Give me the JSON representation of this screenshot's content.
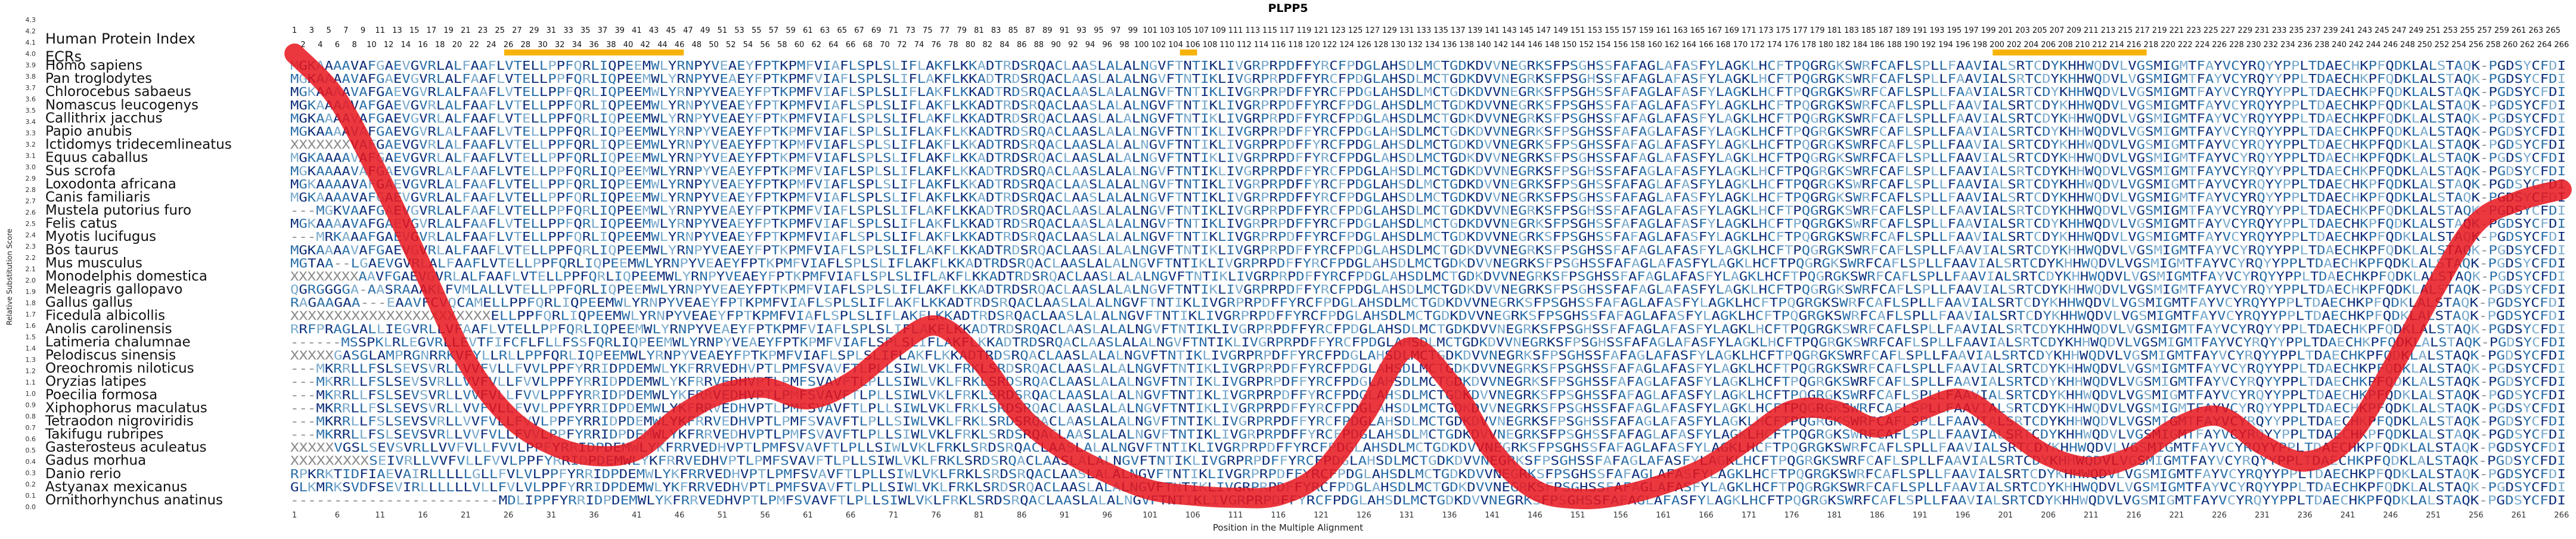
{
  "chart_data": {
    "type": "line",
    "title": "PLPP5",
    "xlabel": "Position in the Multiple Alignment",
    "ylabel": "Relative Substitution Score",
    "ylim": [
      0,
      4.3
    ],
    "xlim": [
      1,
      266
    ],
    "y_ticks": [
      0,
      0.1,
      0.2,
      0.3,
      0.4,
      0.5,
      0.6,
      0.7,
      0.8,
      0.9,
      1.0,
      1.1,
      1.2,
      1.3,
      1.4,
      1.5,
      1.6,
      1.7,
      1.8,
      1.9,
      2.0,
      2.1,
      2.2,
      2.3,
      2.4,
      2.5,
      2.6,
      2.7,
      2.8,
      2.9,
      3.0,
      3.1,
      3.2,
      3.3,
      3.4,
      3.5,
      3.6,
      3.7,
      3.8,
      3.9,
      4.0,
      4.1,
      4.2,
      4.3
    ],
    "x_tick_start": 1,
    "x_tick_step": 5,
    "header_label": "Human Protein Index",
    "ecr_label": "ECRs",
    "ecr_regions": [
      [
        26,
        46
      ],
      [
        105,
        106
      ],
      [
        200,
        217
      ]
    ],
    "top_index_row1_step": 2,
    "top_index_row1_start": 1,
    "top_index_row2_start": 2,
    "grid": false,
    "legend": "none",
    "series": [
      {
        "color": "#e8141c",
        "x": [
          1,
          6,
          11,
          16,
          21,
          26,
          31,
          36,
          41,
          46,
          51,
          56,
          61,
          66,
          71,
          76,
          81,
          86,
          91,
          96,
          101,
          106,
          111,
          116,
          121,
          126,
          131,
          136,
          141,
          146,
          151,
          156,
          161,
          166,
          171,
          176,
          181,
          186,
          191,
          196,
          201,
          206,
          211,
          216,
          221,
          226,
          231,
          236,
          241,
          246,
          251,
          256,
          261,
          266
        ],
        "values": [
          4.0,
          3.6,
          2.9,
          2.1,
          1.3,
          0.8,
          0.55,
          0.45,
          0.5,
          0.8,
          1.0,
          1.05,
          0.95,
          1.1,
          1.4,
          1.6,
          1.3,
          0.8,
          0.5,
          0.3,
          0.15,
          0.1,
          0.08,
          0.1,
          0.3,
          0.8,
          1.4,
          1.1,
          0.5,
          0.15,
          0.07,
          0.1,
          0.2,
          0.35,
          0.6,
          0.85,
          0.85,
          0.7,
          0.85,
          0.95,
          0.7,
          0.45,
          0.35,
          0.45,
          0.7,
          0.8,
          0.55,
          0.4,
          0.6,
          1.2,
          1.9,
          2.5,
          2.7,
          2.8
        ]
      }
    ],
    "alignment_palette": [
      "#888888",
      "#7aaacc",
      "#2a6fa8",
      "#0d2e7a"
    ],
    "species": [
      "Homo sapiens",
      "Pan troglodytes",
      "Chlorocebus sabaeus",
      "Nomascus leucogenys",
      "Callithrix jacchus",
      "Papio anubis",
      "Ictidomys tridecemlineatus",
      "Equus caballus",
      "Sus scrofa",
      "Loxodonta africana",
      "Canis familiaris",
      "Mustela putorius furo",
      "Felis catus",
      "Myotis lucifugus",
      "Bos taurus",
      "Mus musculus",
      "Monodelphis domestica",
      "Meleagris gallopavo",
      "Gallus gallus",
      "Ficedula albicollis",
      "Anolis carolinensis",
      "Latimeria chalumnae",
      "Pelodiscus sinensis",
      "Oreochromis niloticus",
      "Oryzias latipes",
      "Poecilia formosa",
      "Xiphophorus maculatus",
      "Tetraodon nigroviridis",
      "Takifugu rubripes",
      "Gasterosteus aculeatus",
      "Gadus morhua",
      "Danio rerio",
      "Astyanax mexicanus",
      "Ornithorhynchus anatinus"
    ],
    "sequences": [
      "MGKAAAAVAFGAEVGVRLALFAAFLVTELLPPFQRLIQPEEMWLYRNPYVEAEYFPTKPMFVIAFLSPLSLIFLAKFLKKADTRDSRQACLAASLALALNGVFTNTIKLIVGRPRPDFFYRCFPDGLAHSDLMCTGDKDVVNEGRKSFPSGHSSFAFAGLAFASFYLAGKLHCFTPQGRGKSWRFCAFLSPLLFAAVIALSRTCDYKHHWQDVLVGSMIGMTFAYVCYRQYYPPLTDAECHKPFQDKLALSTAQK-PGDSYCFDI",
      "MGKAAAAVAFGAEVGVRLALFAAFLVTELLPPFQRLIQPEEMWLYRNPYVEAEYFPTKPMFVIAFLSPLSLIFLAKFLKKADTRDSRQACLAASLALALNGVFTNTIKLIVGRPRPDFFYRCFPDGLAHSDLMCTGDKDVVNEGRKSFPSGHSSFAFAGLAFASFYLAGKLHCFTPQGRGKSWRFCAFLSPLLFAAVIALSRTCDYKHHWQDVLVGSMIGMTFAYVCYRQYYPPLTDAECHKPFQDKLALSTAQK-PGDSYCFDI",
      "MGKAAAAVAFGAEVGVRLALFAAFLVTELLPPFQRLIQPEEMWLYRNPYVEAEYFPTKPMFVIAFLSPLSLIFLAKFLKKADTRDSRQACLAASLALALNGVFTNTIKLIVGRPRPDFFYRCFPDGLAHSDLMCTGDKDVVNEGRKSFPSGHSSFAFAGLAFASFYLAGKLHCFTPQGRGKSWRFCAFLSPLLFAAVIALSRTCDYKHHWQDVLVGSMIGMTFAYVCYRQYYPPLTDAECHKPFQDKLALSTAQK-PGDSYCFDI",
      "MGKAAAAVAFGAEVGVRLALFAAFLVTELLPPFQRLIQPEEMWLYRNPYVEAEYFPTKPMFVIAFLSPLSLIFLAKFLKKADTRDSRQACLAASLALALNGVFTNTIKLIVGRPRPDFFYRCFPDGLAHSDLMCTGDKDVVNEGRKSFPSGHSSFAFAGLAFASFYLAGKLHCFTPQGRGKSWRFCAFLSPLLFAAVIALSRTCDYKHHWQDVLVGSMIGMTFAYVCYRQYYPPLTDAECHKPFQDKLALSTAQK-PGDSYCFDI",
      "MGKAAAAVAFGAEVGVRLALFAAFLVTELLPPFQRLIQPEEMWLYRNPYVEAEYFPTKPMFVIAFLSPLSLIFLAKFLKKADTRDSRQACLAASLALALNGVFTNTIKLIVGRPRPDFFYRCFPDGLAHSDLMCTGDKDVVNEGRKSFPSGHSSFAFAGLAFASFYLAGKLHCFTPQGRGKSWRFCAFLSPLLFAAVIALSRTCDYKHHWQDVLVGSMIGMTFAYVCYRQYYPPLTDAECHKPFQDKLALSTAQK-PGDSYCFDI",
      "MGKAAAAVAFGAEVGVRLALFAAFLVTELLPPFQRLIQPEEMWLYRNPYVEAEYFPTKPMFVIAFLSPLSLIFLAKFLKKADTRDSRQACLAASLALALNGVFTNTIKLIVGRPRPDFFYRCFPDGLAHSDLMCTGDKDVVNEGRKSFPSGHSSFAFAGLAFASFYLAGKLHCFTPQGRGKSWRFCAFLSPLLFAAVIALSRTCDYKHHWQDVLVGSMIGMTFAYVCYRQYYPPLTDAECHKPFQDKLALSTAQK-PGDSYCFDI",
      "XXXXXXXVAFGAEVGVRLALFAAFLVTELLPPFQRLIQPEEMWLYRNPYVEAEYFPTKPMFVIAFLSPLSLIFLAKFLKKADTRDSRQACLAASLALALNGVFTNTIKLIVGRPRPDFFYRCFPDGLAHSDLMCTGDKDVVNEGRKSFPSGHSSFAFAGLAFASFYLAGKLHCFTPQGRGKSWRFCAFLSPLLFAAVIALSRTCDYKHHWQDVLVGSMIGMTFAYVCYRQYYPPLTDAECHKPFQDKLALSTAQK-PGDSYCFDI",
      "MGKAAAAVAFGAEVGVRLALFAAFLVTELLPPFQRLIQPEEMWLYRNPYVEAEYFPTKPMFVIAFLSPLSLIFLAKFLKKADTRDSRQACLAASLALALNGVFTNTIKLIVGRPRPDFFYRCFPDGLAHSDLMCTGDKDVVNEGRKSFPSGHSSFAFAGLAFASFYLAGKLHCFTPQGRGKSWRFCAFLSPLLFAAVIALSRTCDYKHHWQDVLVGSMIGMTFAYVCYRQYYPPLTDAECHKPFQDKLALSTAQK-PGDSYCFDI",
      "MGKAAAAVAFGAEVGVRLALFAAFLVTELLPPFQRLIQPEEMWLYRNPYVEAEYFPTKPMFVIAFLSPLSLIFLAKFLKKADTRDSRQACLAASLALALNGVFTNTIKLIVGRPRPDFFYRCFPDGLAHSDLMCTGDKDVVNEGRKSFPSGHSSFAFAGLAFASFYLAGKLHCFTPQGRGKSWRFCAFLSPLLFAAVIALSRTCDYKHHWQDVLVGSMIGMTFAYVCYRQYYPPLTDAECHKPFQDKLALSTAQK-PGDSYCFDI",
      "MGKAAAAVAFGAEVGVRLALFAAFLVTELLPPFQRLIQPEEMWLYRNPYVEAEYFPTKPMFVIAFLSPLSLIFLAKFLKKADTRDSRQACLAASLALALNGVFTNTIKLIVGRPRPDFFYRCFPDGLAHSDLMCTGDKDVVNEGRKSFPSGHSSFAFAGLAFASFYLAGKLHCFTPQGRGKSWRFCAFLSPLLFAAVIALSRTCDYKHHWQDVLVGSMIGMTFAYVCYRQYYPPLTDAECHKPFQDKLALSTAQK-PGDSYCFDI",
      "MGKAAAAVAFGAEVGVRLALFAAFLVTELLPPFQRLIQPEEMWLYRNPYVEAEYFPTKPMFVIAFLSPLSLIFLAKFLKKADTRDSRQACLAASLALALNGVFTNTIKLIVGRPRPDFFYRCFPDGLAHSDLMCTGDKDVVNEGRKSFPSGHSSFAFAGLAFASFYLAGKLHCFTPQGRGKSWRFCAFLSPLLFAAVIALSRTCDYKHHWQDVLVGSMIGMTFAYVCYRQYYPPLTDAECHKPFQDKLALSTAQK-PGDSYCFDI",
      "---MGKVAAFGAEVGVRLALFAAFLVTELLPPFQRLIQPEEMWLYRNPYVEAEYFPTKPMFVIAFLSPLSLIFLAKFLKKADTRDSRQACLAASLALALNGVFTNTIKLIVGRPRPDFFYRCFPDGLAHSDLMCTGDKDVVNEGRKSFPSGHSSFAFAGLAFASFYLAGKLHCFTPQGRGKSWRFCAFLSPLLFAAVIALSRTCDYKHHWQDVLVGSMIGMTFAYVCYRQYYPPLTDAECHKPFQDKLALSTAQK-PGDSYCFDI",
      "MGKAAAAVAFGAEVGVRLALFAAFLVTELLPPFQRLIQPEEMWLYRNPYVEAEYFPTKPMFVIAFLSPLSLIFLAKFLKKADTRDSRQACLAASLALALNGVFTNTIKLIVGRPRPDFFYRCFPDGLAHSDLMCTGDKDVVNEGRKSFPSGHSSFAFAGLAFASFYLAGKLHCFTPQGRGKSWRFCAFLSPLLFAAVIALSRTCDYKHHWQDVLVGSMIGMTFAYVCYRQYYPPLTDAECHKPFQDKLALSTAQK-PGDSYCFDI",
      "---MRKAAAFGAEVGVRLALFAAFLVTELLPPFQRLIQPEEMWLYRNPYVEAEYFPTKPMFVIAFLSPLSLIFLAKFLKKADTRDSRQACLAASLALALNGVFTNTIKLIVGRPRPDFFYRCFPDGLAHSDLMCTGDKDVVNEGRKSFPSGHSSFAFAGLAFASFYLAGKLHCFTPQGRGKSWRFCAFLSPLLFAAVIALSRTCDYKHHWQDVLVGSMIGMTFAYVCYRQYYPPLTDAECHKPFQDKLALSTAQK-PGDSYCFDI",
      "MGKAAAAVAFGAEVGVRLALFAAFLVTELLPPFQRLIQPEEMWLYRNPYVEAEYFPTKPMFVIAFLSPLSLIFLAKFLKKADTRDSRQACLAASLALALNGVFTNTIKLIVGRPRPDFFYRCFPDGLAHSDLMCTGDKDVVNEGRKSFPSGHSSFAFAGLAFASFYLAGKLHCFTPQGRGKSWRFCAFLSPLLFAAVIALSRTCDYKHHWQDVLVGSMIGMTFAYVCYRQYYPPLTDAECHKPFQDKLALSTAQK-PGDSYCFDI",
      "MGTAA--LGAEVGVRLALFAAFLVTELLPPFQRLIQPEEMWLYRNPYVEAEYFPTKPMFVIAFLSPLSLIFLAKFLKKADTRDSRQACLAASLALALNGVFTNTIKLIVGRPRPDFFYRCFPDGLAHSDLMCTGDKDVVNEGRKSFPSGHSSFAFAGLAFASFYLAGKLHCFTPQGRGKSWRFCAFLSPLLFAAVIALSRTCDYKHHWQDVLVGSMIGMTFAYVCYRQYYPPLTDAECHKPFQDKLALSTAQK-PGDSYCFDI",
      "XXXXXXXXAAVFGAEVGVRLALFAAFLVTELLPPFQRLIQPEEMWLYRNPYVEAEYFPTKPMFVIAFLSPLSLIFLAKFLKKADTRDSRQACLAASLALALNGVFTNTIKLIVGRPRPDFFYRCFPDGLAHSDLMCTGDKDVVNEGRKSFPSGHSSFAFAGLAFASFYLAGKLHCFTPQGRGKSWRFCAFLSPLLFAAVIALSRTCDYKHHWQDVLVGSMIGMTFAYVCYRQYYPPLTDAECHKPFQDKLALSTAQK-PGDSYCFDI",
      "QGRGGGGA-AASRAAAKLFVMLALLVTELLPPFQRLIQPEEMWLYRNPYVEAEYFPTKPMFVIAFLSPLSLIFLAKFLKKADTRDSRQACLAASLALALNGVFTNTIKLIVGRPRPDFFYRCFPDGLAHSDLMCTGDKDVVNEGRKSFPSGHSSFAFAGLAFASFYLAGKLHCFTPQGRGKSWRFCAFLSPLLFAAVIALSRTCDYKHHWQDVLVGSMIGMTFAYVCYRQYYPPLTDAECHKPFQDKLALSTAQK-PGDSYCFDI",
      "RAGAAGAA---EAAVFCVQCAMELLPPFQRLIQPEEMWLYRNPYVEAEYFPTKPMFVIAFLSPLSLIFLAKFLKKADTRDSRQACLAASLALALNGVFTNTIKLIVGRPRPDFFYRCFPDGLAHSDLMCTGDKDVVNEGRKSFPSGHSSFAFAGLAFASFYLAGKLHCFTPQGRGKSWRFCAFLSPLLFAAVIALSRTCDYKHHWQDVLVGSMIGMTFAYVCYRQYYPPLTDAECHKPFQDKLALSTAQK-PGDSYCFDI",
      "XXXXXXXXXXXXXXXXXXXXXXXELLPPFQRLIQPEEMWLYRNPYVEAEYFPTKPMFVIAFLSPLSLIFLAKFLKKADTRDSRQACLAASLALALNGVFTNTIKLIVGRPRPDFFYRCFPDGLAHSDLMCTGDKDVVNEGRKSFPSGHSSFAFAGLAFASFYLAGKLHCFTPQGRGKSWRFCAFLSPLLFAAVIALSRTCDYKHHWQDVLVGSMIGMTFAYVCYRQYYPPLTDAECHKPFQDKLALSTAQK-PGDSYCFDI",
      "RRFPRAGLALLIEGVRLLVFAAFLVTELLPPFQRLIQPEEMWLYRNPYVEAEYFPTKPMFVIAFLSPLSLIFLAKFLKKADTRDSRQACLAASLALALNGVFTNTIKLIVGRPRPDFFYRCFPDGLAHSDLMCTGDKDVVNEGRKSFPSGHSSFAFAGLAFASFYLAGKLHCFTPQGRGKSWRFCAFLSPLLFAAVIALSRTCDYKHHWQDVLVGSMIGMTFAYVCYRQYYPPLTDAECHKPFQDKLALSTAQK-PGDSYCFDI",
      "------MSSPKLRLEGVRLLEVTFIFCFLFLLFSSFQRLIQPEEMWLYRNPYVEAEYFPTKPMFVIAFLSPLSLIFLAKFLKKADTRDSRQACLAASLALALNGVFTNTIKLIVGRPRPDFFYRCFPDGLAHSDLMCTGDKDVVNEGRKSFPSGHSSFAFAGLAFASFYLAGKLHCFTPQGRGKSWRFCAFLSPLLFAAVIALSRTCDYKHHWQDVLVGSMIGMTFAYVCYRQYYPPLTDAECHKPFQDKLALSTAQK-PGDSYCFDI",
      "XXXXXGASGLAMPRGNRRKVFYLLRLLPPFQRLIQPEEMWLYRNPYVEAEYFPTKPMFVIAFLSPLSLIFLAKFLKKADTRDSRQACLAASLALALNGVFTNTIKLIVGRPRPDFFYRCFPDGLAHSDLMCTGDKDVVNEGRKSFPSGHSSFAFAGLAFASFYLAGKLHCFTPQGRGKSWRFCAFLSPLLFAAVIALSRTCDYKHHWQDVLVGSMIGMTFAYVCYRQYYPPLTDAECHKPFQDKLALSTAQK-PGDSYCFDI",
      "---MKRRLLFSLSEVSVRLLVVFVLLFVVLPPFYRRIDPDEMWLYKFRRVEDHVPTLPMFSVAVFTLPLLSIWLVKLFRKLSRDSRQACLAASLALALNGVFTNTIKLIVGRPRPDFFYRCFPDGLAHSDLMCTGDKDVVNEGRKSFPSGHSSFAFAGLAFASFYLAGKLHCFTPQGRGKSWRFCAFLSPLLFAAVIALSRTCDYKHHWQDVLVGSMIGMTFAYVCYRQYYPPLTDAECHKPFQDKLALSTAQK-PGDSYCFDI",
      "---MKRRLLFSLSEVSVRLLVVFVLLFVVLPPFYRRIDPDEMWLYKFRRVEDHVPTLPMFSVAVFTLPLLSIWLVKLFRKLSRDSRQACLAASLALALNGVFTNTIKLIVGRPRPDFFYRCFPDGLAHSDLMCTGDKDVVNEGRKSFPSGHSSFAFAGLAFASFYLAGKLHCFTPQGRGKSWRFCAFLSPLLFAAVIALSRTCDYKHHWQDVLVGSMIGMTFAYVCYRQYYPPLTDAECHKPFQDKLALSTAQK-PGDSYCFDI",
      "---MKRRLLFSLSEVSVRLLVVFVLLFVVLPPFYRRIDPDEMWLYKFRRVEDHVPTLPMFSVAVFTLPLLSIWLVKLFRKLSRDSRQACLAASLALALNGVFTNTIKLIVGRPRPDFFYRCFPDGLAHSDLMCTGDKDVVNEGRKSFPSGHSSFAFAGLAFASFYLAGKLHCFTPQGRGKSWRFCAFLSPLLFAAVIALSRTCDYKHHWQDVLVGSMIGMTFAYVCYRQYYPPLTDAECHKPFQDKLALSTAQK-PGDSYCFDI",
      "---MKRRLLFSLSEVSVRLLVVFVLLFVVLPPFYRRIDPDEMWLYKFRRVEDHVPTLPMFSVAVFTLPLLSIWLVKLFRKLSRDSRQACLAASLALALNGVFTNTIKLIVGRPRPDFFYRCFPDGLAHSDLMCTGDKDVVNEGRKSFPSGHSSFAFAGLAFASFYLAGKLHCFTPQGRGKSWRFCAFLSPLLFAAVIALSRTCDYKHHWQDVLVGSMIGMTFAYVCYRQYYPPLTDAECHKPFQDKLALSTAQK-PGDSYCFDI",
      "---MKRRLLFSLSEVSVRLLVVFVLLFVVLPPFYRRIDPDEMWLYKFRRVEDHVPTLPMFSVAVFTLPLLSIWLVKLFRKLSRDSRQACLAASLALALNGVFTNTIKLIVGRPRPDFFYRCFPDGLAHSDLMCTGDKDVVNEGRKSFPSGHSSFAFAGLAFASFYLAGKLHCFTPQGRGKSWRFCAFLSPLLFAAVIALSRTCDYKHHWQDVLVGSMIGMTFAYVCYRQYYPPLTDAECHKPFQDKLALSTAQK-PGDSYCFDI",
      "---MKRRLLFSLSEVSVRLLVVFVLLFVVLPPFYRRIDPDEMWLYKFRRVEDHVPTLPMFSVAVFTLPLLSIWLVKLFRKLSRDSRQACLAASLALALNGVFTNTIKLIVGRPRPDFFYRCFPDGLAHSDLMCTGDKDVVNEGRKSFPSGHSSFAFAGLAFASFYLAGKLHCFTPQGRGKSWRFCAFLSPLLFAAVIALSRTCDYKHHWQDVLVGSMIGMTFAYVCYRQYYPPLTDAECHKPFQDKLALSTAQK-PGDSYCFDI",
      "XXXXXVGSLSEVSVRLLVVFVLLFVVLPPFYRRIDPDEMWLYKFRRVEDHVPTLPMFSVAVFTLPLLSIWLVKLFRKLSRDSRQACLAASLALALNGVFTNTIKLIVGRPRPDFFYRCFPDGLAHSDLMCTGDKDVVNEGRKSFPSGHSSFAFAGLAFASFYLAGKLHCFTPQGRGKSWRFCAFLSPLLFAAVIALSRTCDYKHHWQDVLVGSMIGMTFAYVCYRQYYPPLTDAECHKPFQDKLALSTAQK-PGDSYCFDI",
      "XXXXXXXXXSEIVRLLVVFVLLFVVLPPFYRRIDPDEMWLYKFRRVEDHVPTLPMFSVAVFTLPLLSIWLVKLFRKLSRDSRQACLAASLALALNGVFTNTIKLIVGRPRPDFFYRCFPDGLAHSDLMCTGDKDVVNEGRKSFPSGHSSFAFAGLAFASFYLAGKLHCFTPQGRGKSWRFCAFLSPLLFAAVIALSRTCDYKHHWQDVLVGSMIGMTFAYVCYRQYYPPLTDAECHKPFQDKLALSTAQK-PGDSYCFDI",
      "RPKRKTIDFIAEVAIRLLLLLGLLFVLVLPPFYRRIDPDEMWLYKFRRVEDHVPTLPMFSVAVFTLPLLSIWLVKLFRKLSRDSRQACLAASLALALNGVFTNTIKLIVGRPRPDFFYRCFPDGLAHSDLMCTGDKDVVNEGRKSFPSGHSSFAFAGLAFASFYLAGKLHCFTPQGRGKSWRFCAFLSPLLFAAVIALSRTCDYKHHWQDVLVGSMIGMTFAYVCYRQYYPPLTDAECHKPFQDKLALSTAQK-PGDSYCFDI",
      "GLKMRKSVDFSEVIRLLLLLLVLLFVLVLPPFYRRIDPDEMWLYKFRRVEDHVPTLPMFSVAVFTLPLLSIWLVKLFRKLSRDSRQACLAASLALALNGVFTNTIKLIVGRPRPDFFYRCFPDGLAHSDLMCTGDKDVVNEGRKSFPSGHSSFAFAGLAFASFYLAGKLHCFTPQGRGKSWRFCAFLSPLLFAAVIALSRTCDYKHHWQDVLVGSMIGMTFAYVCYRQYYPPLTDAECHKPFQDKLALSTAQK-PGDSYCFDI",
      "------------------------MDLIPPFYRRIDPDEMWLYKFRRVEDHVPTLPMFSVAVFTLPLLSIWLVKLFRKLSRDSRQACLAASLALALNGVFTNTIKLIVGRPRPDFFYRCFPDGLAHSDLMCTGDKDVVNEGRKSFPSGHSSFAFAGLAFASFYLAGKLHCFTPQGRGKSWRFCAFLSPLLFAAVIALSRTCDYKHHWQDVLVGSMIGMTFAYVCYRQYYPPLTDAECHKPFQDKLALSTAQK-PGDSYCFDI"
    ]
  }
}
